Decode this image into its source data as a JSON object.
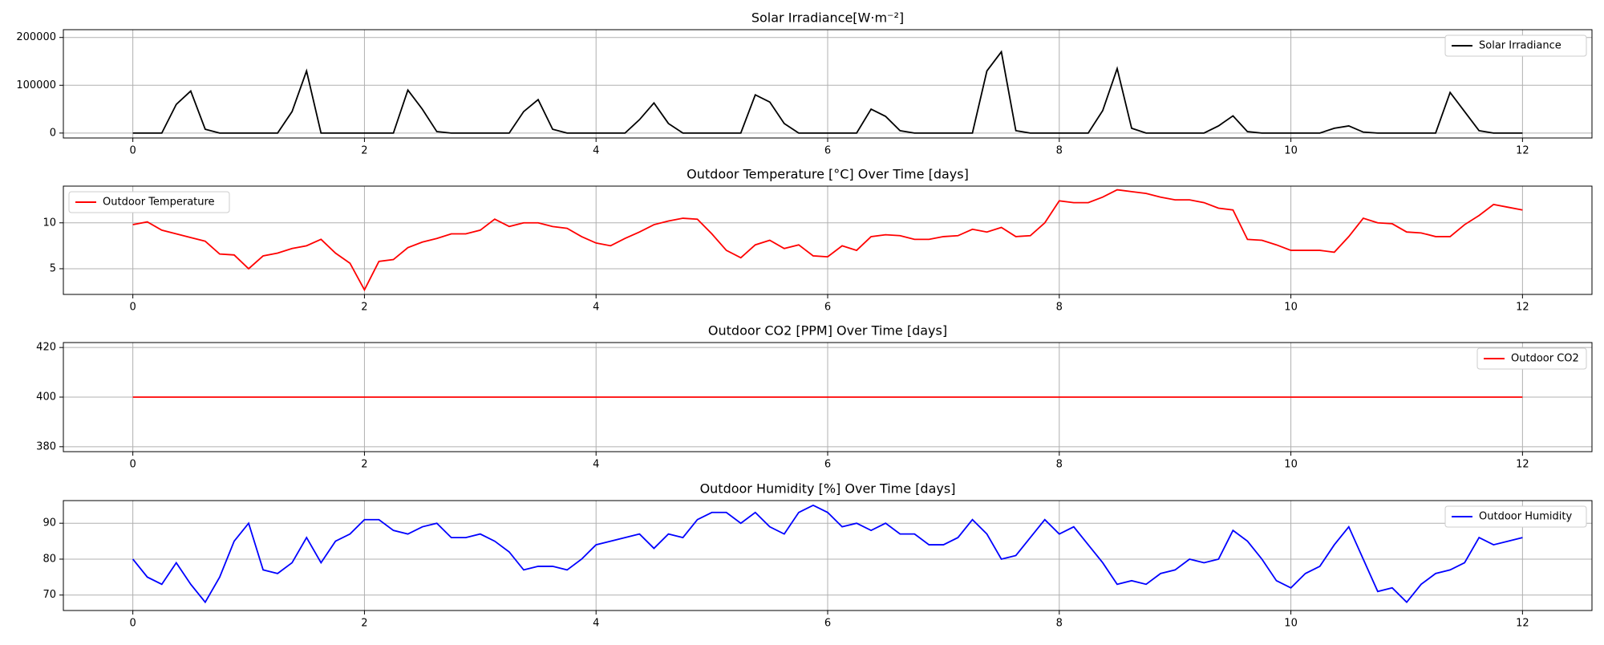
{
  "chart_data": [
    {
      "type": "line",
      "title": "Solar Irradiance[W·m⁻²]",
      "legend": "upper right",
      "grid": true,
      "xlim": [
        -0.6,
        12.6
      ],
      "xticks": [
        0,
        2,
        4,
        6,
        8,
        10,
        12
      ],
      "ylim": [
        -10300,
        216300
      ],
      "yticks": [
        0,
        100000,
        200000
      ],
      "x": [
        0,
        0.125,
        0.25,
        0.375,
        0.5,
        0.625,
        0.75,
        0.875,
        1,
        1.125,
        1.25,
        1.375,
        1.5,
        1.625,
        1.75,
        1.875,
        2,
        2.125,
        2.25,
        2.375,
        2.5,
        2.625,
        2.75,
        2.875,
        3,
        3.125,
        3.25,
        3.375,
        3.5,
        3.625,
        3.75,
        3.875,
        4,
        4.125,
        4.25,
        4.375,
        4.5,
        4.625,
        4.75,
        4.875,
        5,
        5.125,
        5.25,
        5.375,
        5.5,
        5.625,
        5.75,
        5.875,
        6,
        6.125,
        6.25,
        6.375,
        6.5,
        6.625,
        6.75,
        6.875,
        7,
        7.125,
        7.25,
        7.375,
        7.5,
        7.625,
        7.75,
        7.875,
        8,
        8.125,
        8.25,
        8.375,
        8.5,
        8.625,
        8.75,
        8.875,
        9,
        9.125,
        9.25,
        9.375,
        9.5,
        9.625,
        9.75,
        9.875,
        10,
        10.125,
        10.25,
        10.375,
        10.5,
        10.625,
        10.75,
        10.875,
        11,
        11.125,
        11.25,
        11.375,
        11.5,
        11.625,
        11.75,
        11.875,
        12
      ],
      "series": [
        {
          "name": "Solar Irradiance",
          "color": "#000000",
          "values": [
            0,
            0,
            0,
            60000,
            88000,
            8000,
            0,
            0,
            0,
            0,
            0,
            45000,
            130000,
            0,
            0,
            0,
            0,
            0,
            0,
            90000,
            50000,
            3000,
            0,
            0,
            0,
            0,
            0,
            45000,
            70000,
            8000,
            0,
            0,
            0,
            0,
            0,
            28000,
            63000,
            20000,
            0,
            0,
            0,
            0,
            0,
            80000,
            65000,
            20000,
            0,
            0,
            0,
            0,
            0,
            50000,
            35000,
            5000,
            0,
            0,
            0,
            0,
            0,
            130000,
            170000,
            5000,
            0,
            0,
            0,
            0,
            0,
            47000,
            135000,
            10000,
            0,
            0,
            0,
            0,
            0,
            15000,
            36000,
            3000,
            0,
            0,
            0,
            0,
            0,
            10000,
            15000,
            2000,
            0,
            0,
            0,
            0,
            0,
            85000,
            45000,
            5000,
            0,
            0,
            0
          ]
        }
      ]
    },
    {
      "type": "line",
      "title": "Outdoor Temperature [°C] Over Time [days]",
      "legend": "upper left",
      "grid": true,
      "xlim": [
        -0.6,
        12.6
      ],
      "xticks": [
        0,
        2,
        4,
        6,
        8,
        10,
        12
      ],
      "ylim": [
        2.2,
        14
      ],
      "yticks": [
        5,
        10
      ],
      "x": [
        0,
        0.125,
        0.25,
        0.375,
        0.5,
        0.625,
        0.75,
        0.875,
        1,
        1.125,
        1.25,
        1.375,
        1.5,
        1.625,
        1.75,
        1.875,
        2,
        2.125,
        2.25,
        2.375,
        2.5,
        2.625,
        2.75,
        2.875,
        3,
        3.125,
        3.25,
        3.375,
        3.5,
        3.625,
        3.75,
        3.875,
        4,
        4.125,
        4.25,
        4.375,
        4.5,
        4.625,
        4.75,
        4.875,
        5,
        5.125,
        5.25,
        5.375,
        5.5,
        5.625,
        5.75,
        5.875,
        6,
        6.125,
        6.25,
        6.375,
        6.5,
        6.625,
        6.75,
        6.875,
        7,
        7.125,
        7.25,
        7.375,
        7.5,
        7.625,
        7.75,
        7.875,
        8,
        8.125,
        8.25,
        8.375,
        8.5,
        8.625,
        8.75,
        8.875,
        9,
        9.125,
        9.25,
        9.375,
        9.5,
        9.625,
        9.75,
        9.875,
        10,
        10.125,
        10.25,
        10.375,
        10.5,
        10.625,
        10.75,
        10.875,
        11,
        11.125,
        11.25,
        11.375,
        11.5,
        11.625,
        11.75,
        11.875,
        12
      ],
      "series": [
        {
          "name": "Outdoor Temperature",
          "color": "#ff0000",
          "values": [
            9.8,
            10.1,
            9.2,
            8.8,
            8.4,
            8,
            6.6,
            6.5,
            5,
            6.4,
            6.7,
            7.2,
            7.5,
            8.2,
            6.7,
            5.6,
            2.7,
            5.8,
            6,
            7.3,
            7.9,
            8.3,
            8.8,
            8.8,
            9.2,
            10.4,
            9.6,
            10,
            10,
            9.6,
            9.4,
            8.5,
            7.8,
            7.5,
            8.3,
            9,
            9.8,
            10.2,
            10.5,
            10.4,
            8.8,
            7,
            6.2,
            7.6,
            8.1,
            7.2,
            7.6,
            6.4,
            6.3,
            7.5,
            7,
            8.5,
            8.7,
            8.6,
            8.2,
            8.2,
            8.5,
            8.6,
            9.3,
            9,
            9.5,
            8.5,
            8.6,
            10,
            12.4,
            12.2,
            12.2,
            12.8,
            13.6,
            13.4,
            13.2,
            12.8,
            12.5,
            12.5,
            12.2,
            11.6,
            11.4,
            8.2,
            8.1,
            7.6,
            7,
            7,
            7,
            6.8,
            8.5,
            10.5,
            10,
            9.9,
            9,
            8.9,
            8.5,
            8.5,
            9.8,
            10.8,
            12,
            11.7,
            11.4
          ]
        }
      ]
    },
    {
      "type": "line",
      "title": "Outdoor CO2 [PPM] Over Time [days]",
      "legend": "upper right",
      "grid": true,
      "xlim": [
        -0.6,
        12.6
      ],
      "xticks": [
        0,
        2,
        4,
        6,
        8,
        10,
        12
      ],
      "ylim": [
        378,
        422
      ],
      "yticks": [
        380,
        400,
        420
      ],
      "x": [
        0,
        0.125,
        0.25,
        0.375,
        0.5,
        0.625,
        0.75,
        0.875,
        1,
        1.125,
        1.25,
        1.375,
        1.5,
        1.625,
        1.75,
        1.875,
        2,
        2.125,
        2.25,
        2.375,
        2.5,
        2.625,
        2.75,
        2.875,
        3,
        3.125,
        3.25,
        3.375,
        3.5,
        3.625,
        3.75,
        3.875,
        4,
        4.125,
        4.25,
        4.375,
        4.5,
        4.625,
        4.75,
        4.875,
        5,
        5.125,
        5.25,
        5.375,
        5.5,
        5.625,
        5.75,
        5.875,
        6,
        6.125,
        6.25,
        6.375,
        6.5,
        6.625,
        6.75,
        6.875,
        7,
        7.125,
        7.25,
        7.375,
        7.5,
        7.625,
        7.75,
        7.875,
        8,
        8.125,
        8.25,
        8.375,
        8.5,
        8.625,
        8.75,
        8.875,
        9,
        9.125,
        9.25,
        9.375,
        9.5,
        9.625,
        9.75,
        9.875,
        10,
        10.125,
        10.25,
        10.375,
        10.5,
        10.625,
        10.75,
        10.875,
        11,
        11.125,
        11.25,
        11.375,
        11.5,
        11.625,
        11.75,
        11.875,
        12
      ],
      "series": [
        {
          "name": "Outdoor CO2",
          "color": "#ff0000",
          "values": [
            400,
            400,
            400,
            400,
            400,
            400,
            400,
            400,
            400,
            400,
            400,
            400,
            400,
            400,
            400,
            400,
            400,
            400,
            400,
            400,
            400,
            400,
            400,
            400,
            400,
            400,
            400,
            400,
            400,
            400,
            400,
            400,
            400,
            400,
            400,
            400,
            400,
            400,
            400,
            400,
            400,
            400,
            400,
            400,
            400,
            400,
            400,
            400,
            400,
            400,
            400,
            400,
            400,
            400,
            400,
            400,
            400,
            400,
            400,
            400,
            400,
            400,
            400,
            400,
            400,
            400,
            400,
            400,
            400,
            400,
            400,
            400,
            400,
            400,
            400,
            400,
            400,
            400,
            400,
            400,
            400,
            400,
            400,
            400,
            400,
            400,
            400,
            400,
            400,
            400,
            400,
            400,
            400,
            400,
            400,
            400,
            400
          ]
        }
      ]
    },
    {
      "type": "line",
      "title": "Outdoor Humidity [%] Over Time [days]",
      "legend": "upper right",
      "grid": true,
      "xlim": [
        -0.6,
        12.6
      ],
      "xticks": [
        0,
        2,
        4,
        6,
        8,
        10,
        12
      ],
      "ylim": [
        65.7,
        96.3
      ],
      "yticks": [
        70,
        80,
        90
      ],
      "x": [
        0,
        0.125,
        0.25,
        0.375,
        0.5,
        0.625,
        0.75,
        0.875,
        1,
        1.125,
        1.25,
        1.375,
        1.5,
        1.625,
        1.75,
        1.875,
        2,
        2.125,
        2.25,
        2.375,
        2.5,
        2.625,
        2.75,
        2.875,
        3,
        3.125,
        3.25,
        3.375,
        3.5,
        3.625,
        3.75,
        3.875,
        4,
        4.125,
        4.25,
        4.375,
        4.5,
        4.625,
        4.75,
        4.875,
        5,
        5.125,
        5.25,
        5.375,
        5.5,
        5.625,
        5.75,
        5.875,
        6,
        6.125,
        6.25,
        6.375,
        6.5,
        6.625,
        6.75,
        6.875,
        7,
        7.125,
        7.25,
        7.375,
        7.5,
        7.625,
        7.75,
        7.875,
        8,
        8.125,
        8.25,
        8.375,
        8.5,
        8.625,
        8.75,
        8.875,
        9,
        9.125,
        9.25,
        9.375,
        9.5,
        9.625,
        9.75,
        9.875,
        10,
        10.125,
        10.25,
        10.375,
        10.5,
        10.625,
        10.75,
        10.875,
        11,
        11.125,
        11.25,
        11.375,
        11.5,
        11.625,
        11.75,
        11.875,
        12
      ],
      "series": [
        {
          "name": "Outdoor Humidity",
          "color": "#0000ff",
          "values": [
            80,
            75,
            73,
            79,
            73,
            68,
            75,
            85,
            90,
            77,
            76,
            79,
            86,
            79,
            85,
            87,
            91,
            91,
            88,
            87,
            89,
            90,
            86,
            86,
            87,
            85,
            82,
            77,
            78,
            78,
            77,
            80,
            84,
            85,
            86,
            87,
            83,
            87,
            86,
            91,
            93,
            93,
            90,
            93,
            89,
            87,
            93,
            95,
            93,
            89,
            90,
            88,
            90,
            87,
            87,
            84,
            84,
            86,
            91,
            87,
            80,
            81,
            86,
            91,
            87,
            89,
            84,
            79,
            73,
            74,
            73,
            76,
            77,
            80,
            79,
            80,
            88,
            85,
            80,
            74,
            72,
            76,
            78,
            84,
            89,
            80,
            71,
            72,
            68,
            73,
            76,
            77,
            79,
            86,
            84,
            85,
            86
          ]
        }
      ]
    }
  ]
}
